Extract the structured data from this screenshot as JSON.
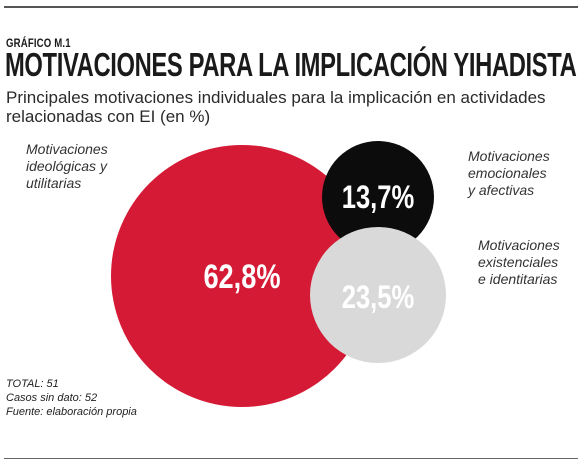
{
  "header": {
    "label": "GRÁFICO M.1",
    "title": "MOTIVACIONES PARA LA IMPLICACIÓN YIHADISTA",
    "subtitle": "Principales motivaciones individuales para la implicación en actividades relacionadas con EI (en %)"
  },
  "chart_data": {
    "type": "pie",
    "title": "MOTIVACIONES PARA LA IMPLICACIÓN YIHADISTA",
    "subtitle": "Principales motivaciones individuales para la implicación en actividades relacionadas con EI (en %)",
    "unit": "%",
    "series": [
      {
        "name": "Motivaciones ideológicas y utilitarias",
        "value": 62.8,
        "display": "62,8%",
        "color": "#d51a35",
        "caption_lines": [
          "Motivaciones",
          "ideológicas y",
          "utilitarias"
        ]
      },
      {
        "name": "Motivaciones emocionales y afectivas",
        "value": 13.7,
        "display": "13,7%",
        "color": "#0c0c0c",
        "caption_lines": [
          "Motivaciones",
          "emocionales",
          "y afectivas"
        ]
      },
      {
        "name": "Motivaciones existenciales e identitarias",
        "value": 23.5,
        "display": "23,5%",
        "color": "#d9d9d9",
        "caption_lines": [
          "Motivaciones",
          "existenciales",
          "e identitarias"
        ]
      }
    ]
  },
  "notes": {
    "total": "TOTAL: 51",
    "missing": "Casos sin dato: 52",
    "source": "Fuente: elaboración propia"
  }
}
